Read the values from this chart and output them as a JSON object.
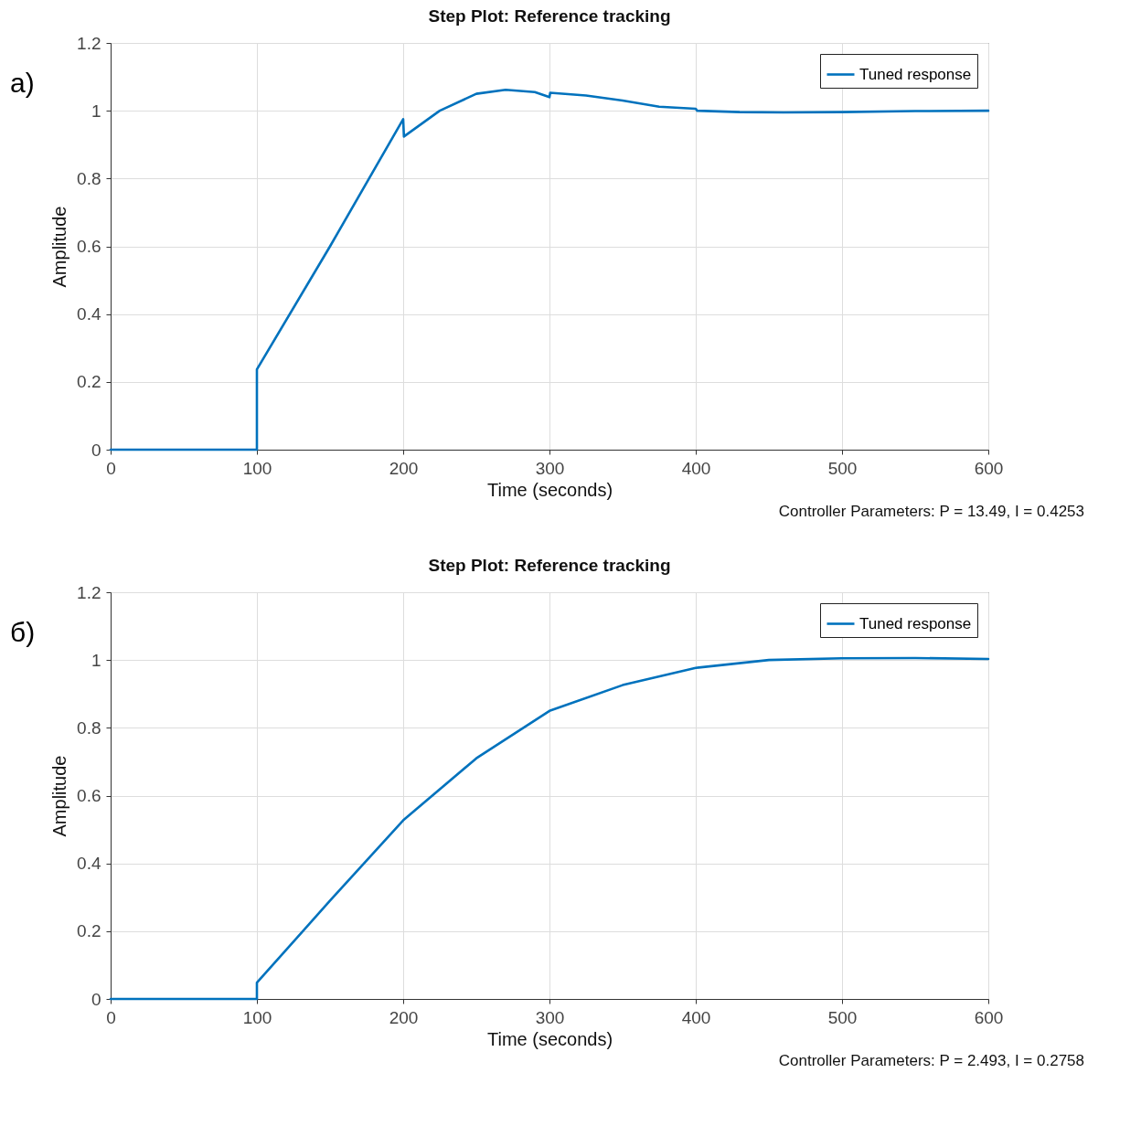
{
  "chart_data": [
    {
      "type": "line",
      "title": "Step Plot: Reference tracking",
      "xlabel": "Time (seconds)",
      "ylabel": "Amplitude",
      "annotations": [
        "а)",
        "Controller Parameters: P = 13.49, I = 0.4253"
      ],
      "series": [
        {
          "name": "Tuned response",
          "color": "#0072bd",
          "x": [
            0,
            100,
            100,
            150,
            200,
            200.5,
            225,
            250,
            270,
            290,
            300,
            300.5,
            325,
            350,
            375,
            400,
            401,
            430,
            460,
            500,
            550,
            600
          ],
          "values": [
            0,
            0,
            0.237,
            0.6,
            0.975,
            0.924,
            1.0,
            1.05,
            1.062,
            1.055,
            1.04,
            1.053,
            1.045,
            1.03,
            1.012,
            1.006,
            1.0,
            0.996,
            0.995,
            0.996,
            0.999,
            1.0
          ]
        }
      ],
      "xlim": [
        0,
        600
      ],
      "xticks": [
        0,
        100,
        200,
        300,
        400,
        500,
        600
      ],
      "ylim": [
        0,
        1.2
      ],
      "yticks": [
        0,
        0.2,
        0.4,
        0.6,
        0.8,
        1,
        1.2
      ],
      "grid": true,
      "legend": "top right",
      "line_style": "solid",
      "marker": "none"
    },
    {
      "type": "line",
      "title": "Step Plot: Reference tracking",
      "xlabel": "Time (seconds)",
      "ylabel": "Amplitude",
      "annotations": [
        "б)",
        "Controller Parameters: P = 2.493, I = 0.2758"
      ],
      "series": [
        {
          "name": "Tuned response",
          "color": "#0072bd",
          "x": [
            0,
            100,
            100,
            150,
            200,
            250,
            300,
            350,
            400,
            450,
            500,
            550,
            600
          ],
          "values": [
            0,
            0,
            0.048,
            0.29,
            0.527,
            0.71,
            0.85,
            0.926,
            0.977,
            1.0,
            1.005,
            1.006,
            1.003
          ]
        }
      ],
      "xlim": [
        0,
        600
      ],
      "xticks": [
        0,
        100,
        200,
        300,
        400,
        500,
        600
      ],
      "ylim": [
        0,
        1.2
      ],
      "yticks": [
        0,
        0.2,
        0.4,
        0.6,
        0.8,
        1,
        1.2
      ],
      "grid": true,
      "legend": "top right",
      "line_style": "solid",
      "marker": "none"
    }
  ]
}
